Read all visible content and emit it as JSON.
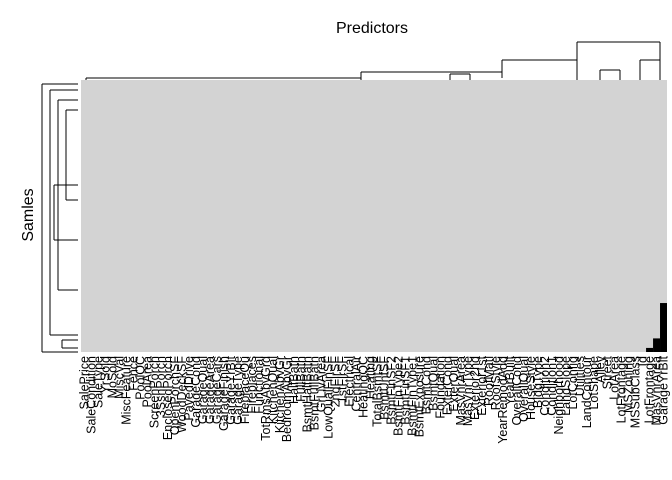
{
  "chart_data": {
    "type": "heatmap",
    "title": "",
    "xlabel": "Predictors",
    "ylabel": "Samles",
    "colors": {
      "background_cell": "#d3d3d3",
      "highlight_cell": "#000000"
    },
    "x_categories": [
      "SalePrice",
      "SaleCondition",
      "SaleType",
      "YrSold",
      "MoSold",
      "MiscVal",
      "MiscFeature",
      "Fence",
      "PoolQC",
      "PoolArea",
      "ScreenPorch",
      "3SsnPorch",
      "EnclosedPorch",
      "OpenPorchSF",
      "WoodDeckSF",
      "PavedDrive",
      "GarageCond",
      "GarageQual",
      "GarageArea",
      "GarageCars",
      "GarageFinish",
      "GarageYrBlt",
      "GarageType",
      "FireplaceQu",
      "Fireplaces",
      "Functional",
      "TotRmsAbvGrd",
      "KitchenQual",
      "KitchenAbvGr",
      "BedroomAbvGr",
      "HalfBath",
      "FullBath",
      "BsmtHalfBath",
      "BsmtFullBath",
      "GrLivArea",
      "LowQualFinSF",
      "2ndFlrSF",
      "1stFlrSF",
      "Electrical",
      "CentralAir",
      "HeatingQC",
      "Heating",
      "TotalBsmtSF",
      "BsmtUnfSF",
      "BsmtFinSF2",
      "BsmtFinType2",
      "BsmtFinSF1",
      "BsmtFinType1",
      "BsmtExposure",
      "BsmtCond",
      "BsmtQual",
      "Foundation",
      "ExterCond",
      "ExterQual",
      "MasVnrArea",
      "MasVnrType",
      "Exterior2nd",
      "Exterior1st",
      "RoofMatl",
      "RoofStyle",
      "YearRemodAdd",
      "YearBuilt",
      "OverallCond",
      "OverallQual",
      "HouseStyle",
      "BldgType",
      "Condition2",
      "Condition1",
      "Neighborhood",
      "LandSlope",
      "LotConfig",
      "Utilities",
      "LandContour",
      "LotShape",
      "Alley",
      "Street",
      "LotArea",
      "LotFrontage",
      "MSZoning",
      "MSSubClass",
      "Id",
      "LotFrontage",
      "MasVnrArea",
      "GarageYrBlt"
    ],
    "highlight_columns": [
      {
        "category": "GarageYrBlt",
        "missing_fraction": 0.18
      },
      {
        "category": "MasVnrArea",
        "missing_fraction": 0.05
      },
      {
        "category": "LotFrontage",
        "missing_fraction": 0.015
      }
    ],
    "grid": false,
    "legend": "none"
  }
}
